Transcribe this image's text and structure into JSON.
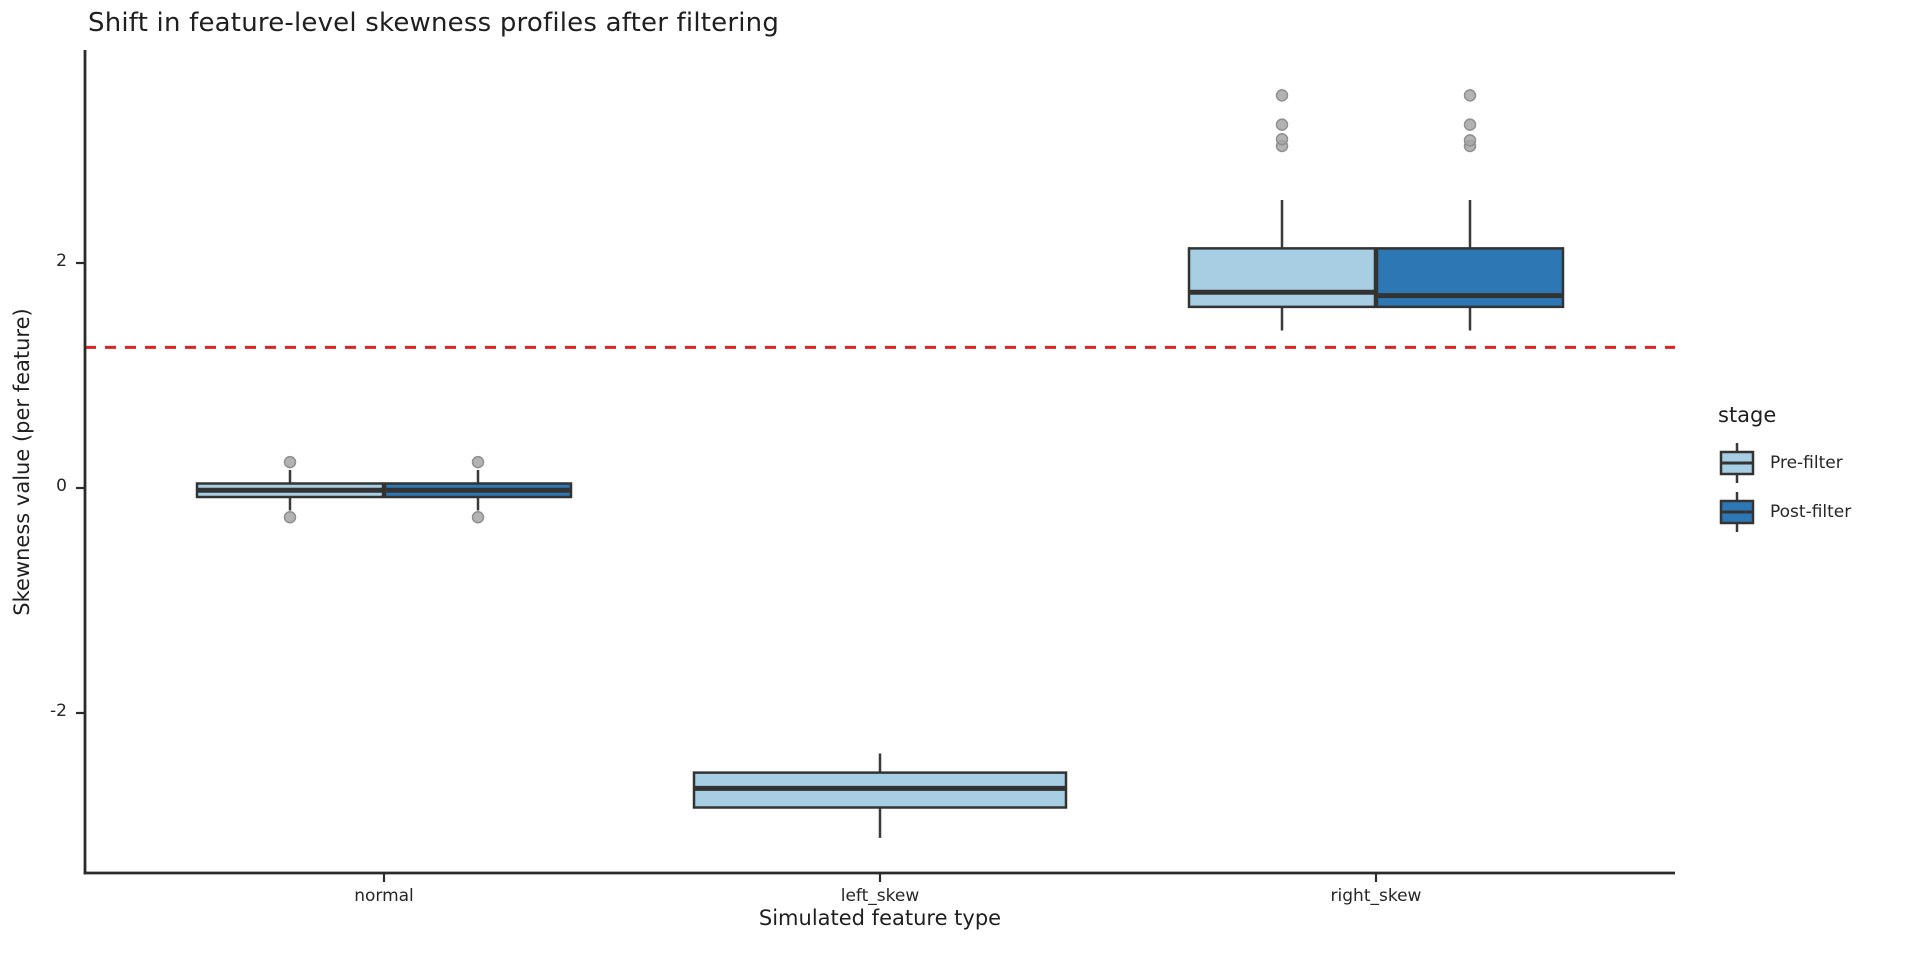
{
  "title": "Shift in feature-level skewness profiles after filtering",
  "x_axis": {
    "label": "Simulated feature type"
  },
  "y_axis": {
    "label": "Skewness value (per feature)",
    "tick_values": [
      2,
      0,
      -2
    ]
  },
  "legend": {
    "title": "stage",
    "entries": [
      {
        "label": "Pre-filter",
        "color": "#a8cee4"
      },
      {
        "label": "Post-filter",
        "color": "#2d78b4"
      }
    ]
  },
  "colors": {
    "pre_fill": "#a8cee4",
    "post_fill": "#2d78b4",
    "box_edge": "#333333",
    "whisker": "#3a3a3a",
    "outlier_fill": "#a6a6a6",
    "outlier_edge": "#8f8f8f",
    "reference_line": "#e02222",
    "spine": "#2b2b2b",
    "text": "#262626"
  },
  "chart_data": {
    "type": "boxplot",
    "title": "Shift in feature-level skewness profiles after filtering",
    "xlabel": "Simulated feature type",
    "ylabel": "Skewness value (per feature)",
    "categories": [
      "normal",
      "left_skew",
      "right_skew"
    ],
    "y_ticks": [
      2,
      0,
      -2
    ],
    "ylim": [
      -3.45,
      3.9
    ],
    "grid": false,
    "legend_position": "right-outside",
    "reference_line": {
      "y": 1.25,
      "color": "#e02222",
      "style": "dashed"
    },
    "series": [
      {
        "name": "Pre-filter",
        "color": "#a8cee4",
        "boxes": [
          {
            "category": "normal",
            "whisker_low": -0.2,
            "q1": -0.08,
            "median": -0.02,
            "q3": 0.04,
            "whisker_high": 0.16,
            "outliers": [
              0.23,
              -0.26
            ]
          },
          {
            "category": "left_skew",
            "whisker_low": -3.11,
            "q1": -2.84,
            "median": -2.67,
            "q3": -2.53,
            "whisker_high": -2.36,
            "outliers": []
          },
          {
            "category": "right_skew",
            "whisker_low": 1.4,
            "q1": 1.61,
            "median": 1.74,
            "q3": 2.13,
            "whisker_high": 2.56,
            "outliers": [
              3.04,
              3.1,
              3.23,
              3.49
            ]
          }
        ]
      },
      {
        "name": "Post-filter",
        "color": "#2d78b4",
        "boxes": [
          {
            "category": "normal",
            "whisker_low": -0.2,
            "q1": -0.08,
            "median": -0.02,
            "q3": 0.04,
            "whisker_high": 0.16,
            "outliers": [
              0.23,
              -0.26
            ]
          },
          null,
          {
            "category": "right_skew",
            "whisker_low": 1.4,
            "q1": 1.61,
            "median": 1.71,
            "q3": 2.13,
            "whisker_high": 2.56,
            "outliers": [
              3.04,
              3.09,
              3.23,
              3.49
            ]
          }
        ]
      }
    ]
  }
}
